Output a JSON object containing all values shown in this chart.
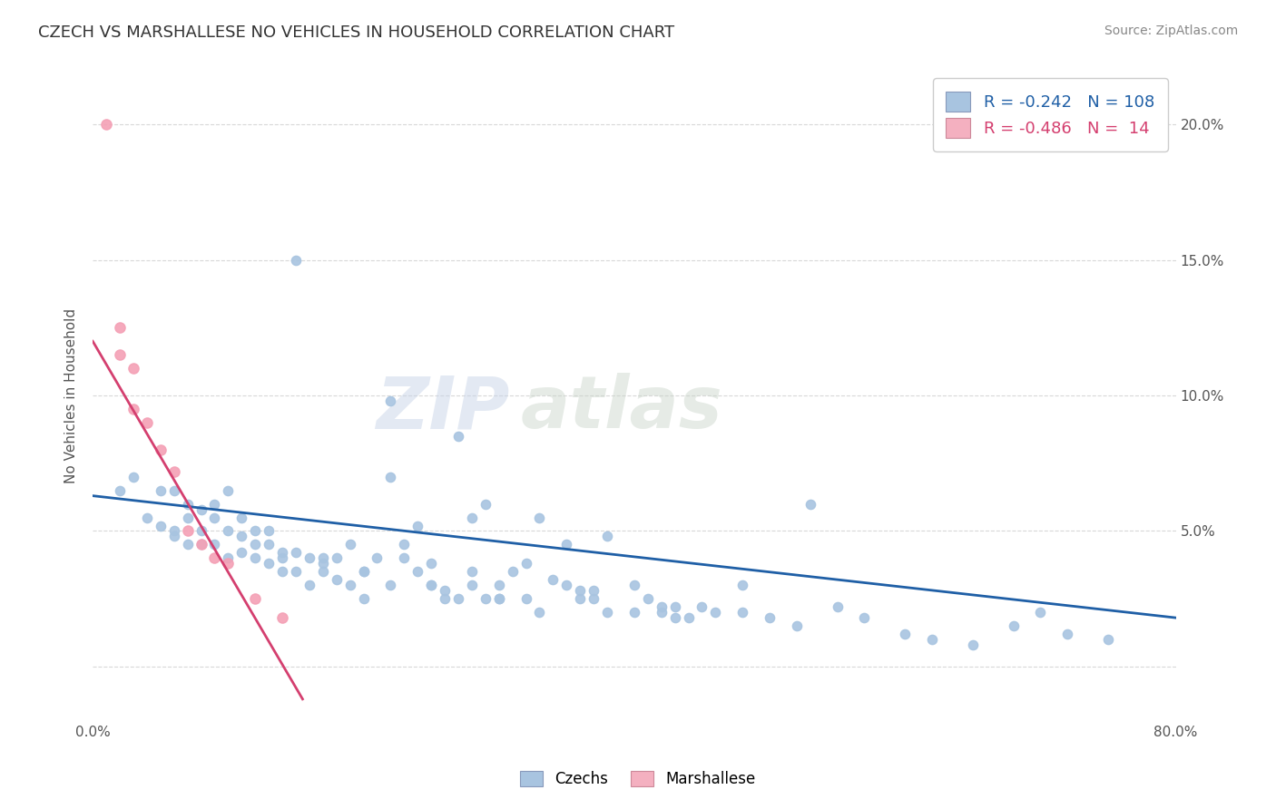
{
  "title": "CZECH VS MARSHALLESE NO VEHICLES IN HOUSEHOLD CORRELATION CHART",
  "source": "Source: ZipAtlas.com",
  "ylabel": "No Vehicles in Household",
  "watermark_zip": "ZIP",
  "watermark_atlas": "atlas",
  "xlim": [
    0.0,
    0.8
  ],
  "ylim": [
    -0.02,
    0.22
  ],
  "xticks": [
    0.0,
    0.1,
    0.2,
    0.3,
    0.4,
    0.5,
    0.6,
    0.7,
    0.8
  ],
  "xticklabels": [
    "0.0%",
    "",
    "",
    "",
    "",
    "",
    "",
    "",
    "80.0%"
  ],
  "yticks": [
    0.0,
    0.05,
    0.1,
    0.15,
    0.2
  ],
  "yticklabels": [
    "",
    "5.0%",
    "10.0%",
    "15.0%",
    "20.0%"
  ],
  "legend_czech_R": "-0.242",
  "legend_czech_N": "108",
  "legend_marsh_R": "-0.486",
  "legend_marsh_N": " 14",
  "czech_color": "#a8c4e0",
  "marsh_color": "#f4a0b5",
  "czech_line_color": "#1f5fa6",
  "marsh_line_color": "#d43f6f",
  "legend_czech_fill": "#a8c4e0",
  "legend_marsh_fill": "#f4b0c0",
  "background_color": "#ffffff",
  "grid_color": "#d8d8d8",
  "title_color": "#333333",
  "axis_label_color": "#555555",
  "tick_color": "#555555",
  "czech_scatter_x": [
    0.02,
    0.03,
    0.04,
    0.05,
    0.05,
    0.06,
    0.06,
    0.06,
    0.07,
    0.07,
    0.07,
    0.08,
    0.08,
    0.08,
    0.09,
    0.09,
    0.09,
    0.1,
    0.1,
    0.1,
    0.11,
    0.11,
    0.11,
    0.12,
    0.12,
    0.12,
    0.13,
    0.13,
    0.13,
    0.14,
    0.14,
    0.15,
    0.15,
    0.16,
    0.16,
    0.17,
    0.17,
    0.18,
    0.18,
    0.19,
    0.2,
    0.2,
    0.21,
    0.22,
    0.22,
    0.23,
    0.24,
    0.25,
    0.25,
    0.26,
    0.27,
    0.28,
    0.28,
    0.3,
    0.3,
    0.32,
    0.33,
    0.35,
    0.36,
    0.37,
    0.38,
    0.4,
    0.41,
    0.42,
    0.43,
    0.45,
    0.46,
    0.48,
    0.5,
    0.52,
    0.55,
    0.57,
    0.6,
    0.62,
    0.65,
    0.68,
    0.7,
    0.72,
    0.75,
    0.4,
    0.28,
    0.32,
    0.22,
    0.35,
    0.29,
    0.38,
    0.24,
    0.19,
    0.14,
    0.33,
    0.27,
    0.48,
    0.53,
    0.44,
    0.2,
    0.36,
    0.25,
    0.3,
    0.15,
    0.42,
    0.17,
    0.26,
    0.34,
    0.23,
    0.31,
    0.29,
    0.37,
    0.43
  ],
  "czech_scatter_y": [
    0.065,
    0.07,
    0.055,
    0.065,
    0.052,
    0.05,
    0.048,
    0.065,
    0.045,
    0.06,
    0.055,
    0.05,
    0.045,
    0.058,
    0.045,
    0.055,
    0.06,
    0.04,
    0.05,
    0.065,
    0.048,
    0.042,
    0.055,
    0.045,
    0.05,
    0.04,
    0.038,
    0.045,
    0.05,
    0.04,
    0.035,
    0.042,
    0.035,
    0.03,
    0.04,
    0.038,
    0.035,
    0.032,
    0.04,
    0.03,
    0.035,
    0.025,
    0.04,
    0.098,
    0.03,
    0.04,
    0.035,
    0.038,
    0.03,
    0.025,
    0.085,
    0.03,
    0.035,
    0.025,
    0.03,
    0.025,
    0.02,
    0.03,
    0.025,
    0.025,
    0.02,
    0.03,
    0.025,
    0.02,
    0.018,
    0.022,
    0.02,
    0.02,
    0.018,
    0.015,
    0.022,
    0.018,
    0.012,
    0.01,
    0.008,
    0.015,
    0.02,
    0.012,
    0.01,
    0.02,
    0.055,
    0.038,
    0.07,
    0.045,
    0.06,
    0.048,
    0.052,
    0.045,
    0.042,
    0.055,
    0.025,
    0.03,
    0.06,
    0.018,
    0.035,
    0.028,
    0.03,
    0.025,
    0.15,
    0.022,
    0.04,
    0.028,
    0.032,
    0.045,
    0.035,
    0.025,
    0.028,
    0.022
  ],
  "marsh_scatter_x": [
    0.01,
    0.02,
    0.02,
    0.03,
    0.03,
    0.04,
    0.05,
    0.06,
    0.07,
    0.08,
    0.09,
    0.1,
    0.12,
    0.14
  ],
  "marsh_scatter_y": [
    0.2,
    0.125,
    0.115,
    0.11,
    0.095,
    0.09,
    0.08,
    0.072,
    0.05,
    0.045,
    0.04,
    0.038,
    0.025,
    0.018
  ],
  "czech_trend_x": [
    0.0,
    0.8
  ],
  "czech_trend_y": [
    0.063,
    0.018
  ],
  "marsh_trend_x": [
    0.0,
    0.155
  ],
  "marsh_trend_y": [
    0.12,
    -0.012
  ]
}
